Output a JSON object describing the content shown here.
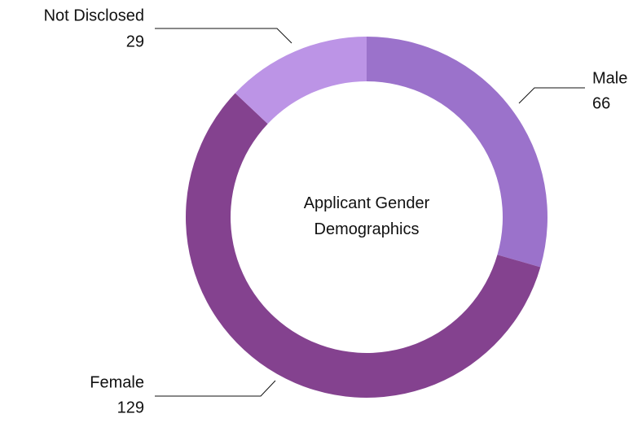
{
  "chart_data": {
    "type": "donut",
    "title": "Applicant Gender Demographics",
    "categories": [
      "Male",
      "Female",
      "Not Disclosed"
    ],
    "values": [
      66,
      129,
      29
    ],
    "colors": [
      "#9b72cb",
      "#84428f",
      "#bc94e6"
    ]
  }
}
